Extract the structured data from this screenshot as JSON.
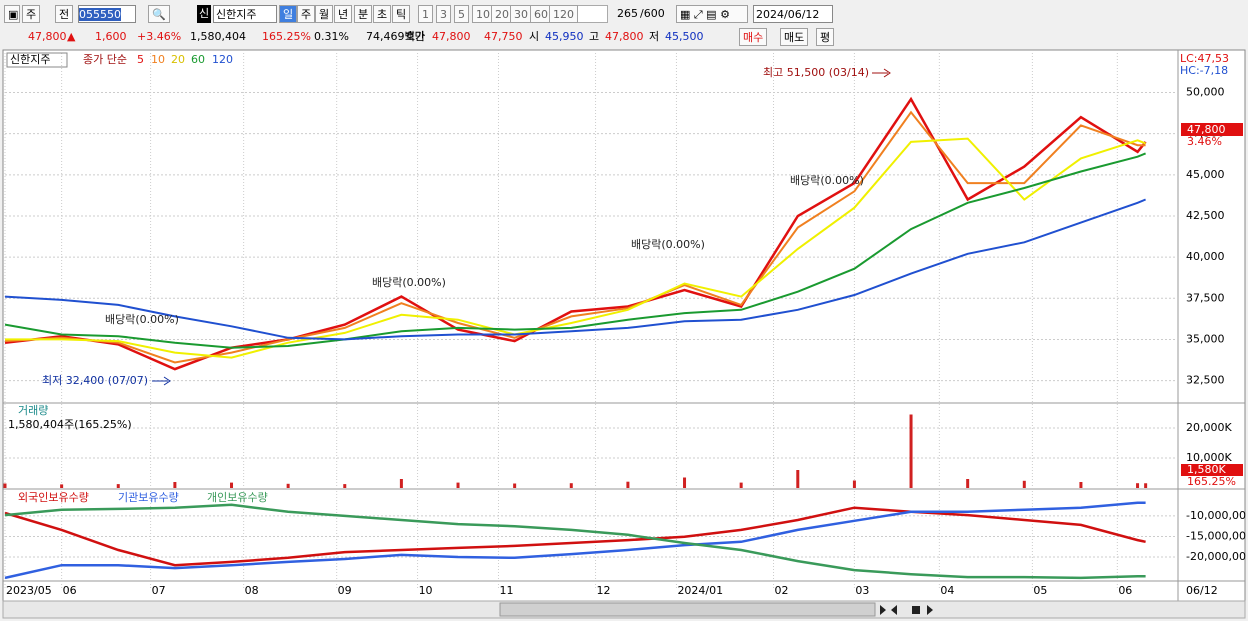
{
  "toolbar": {
    "period": "주",
    "prev": "전",
    "code": "055550",
    "market": "신",
    "name": "신한지주",
    "units": [
      "일",
      "주",
      "월",
      "년",
      "분",
      "초",
      "틱"
    ],
    "intervals": [
      "1",
      "3",
      "5",
      "10",
      "20",
      "30",
      "60",
      "120"
    ],
    "count": "265",
    "max": "/600",
    "date": "2024/06/12"
  },
  "quote": {
    "price": "47,800",
    "arrow": "▲",
    "change": "1,600",
    "rate": "+3.46%",
    "volume": "1,580,404",
    "volume_rate": "165.25%",
    "turnover": "0.31%",
    "amount": "74,469백만",
    "bid_label": "호가",
    "ask": "47,800",
    "bid": "47,750",
    "open_label": "시",
    "open": "45,950",
    "high_label": "고",
    "high": "47,800",
    "low_label": "저",
    "low": "45,500",
    "buy": "매수",
    "sell": "매도",
    "avg": "평"
  },
  "chart_data": [
    {
      "type": "line",
      "name": "신한지주",
      "legend_title": "종가 단순",
      "lc": "LC:47,53",
      "hc": "HC:-7,18",
      "last_label": "47,800",
      "last_rate": "3.46%",
      "annotations": [
        "최고 51,500 (03/14)",
        "최저 32,400 (07/07)",
        "배당락(0.00%)",
        "배당락(0.00%)",
        "배당락(0.00%)",
        "배당락(0.00%)"
      ],
      "x": [
        0,
        14,
        28,
        42,
        56,
        70,
        84,
        98,
        112,
        126,
        140,
        154,
        168,
        182,
        196,
        210,
        224,
        238,
        252,
        266,
        280,
        282
      ],
      "xlim": [
        0,
        290
      ],
      "ylim": [
        31200,
        52400
      ],
      "yticks": [
        {
          "value": 32500,
          "label": "32,500"
        },
        {
          "value": 35000,
          "label": "35,000"
        },
        {
          "value": 37500,
          "label": "37,500"
        },
        {
          "value": 40000,
          "label": "40,000"
        },
        {
          "value": 42500,
          "label": "42,500"
        },
        {
          "value": 45000,
          "label": "45,000"
        },
        {
          "value": 47500,
          "label": "47,500"
        },
        {
          "value": 50000,
          "label": "50,000"
        }
      ],
      "series": [
        {
          "name": "5",
          "color": "#e01010",
          "values": [
            34800,
            35200,
            34700,
            33200,
            34500,
            35000,
            35900,
            37600,
            35600,
            34900,
            36700,
            37000,
            38000,
            37000,
            42500,
            44500,
            49600,
            43500,
            45500,
            48500,
            46400,
            47000
          ]
        },
        {
          "name": "10",
          "color": "#f08020",
          "values": [
            34900,
            35100,
            34800,
            33600,
            34200,
            35000,
            35700,
            37200,
            36000,
            35100,
            36400,
            36900,
            38300,
            37100,
            41800,
            44000,
            48800,
            44500,
            44500,
            48000,
            46800,
            46800
          ]
        },
        {
          "name": "20",
          "color": "#f0f000",
          "values": [
            35000,
            35000,
            34900,
            34200,
            33900,
            34800,
            35400,
            36500,
            36200,
            35300,
            36000,
            36800,
            38400,
            37600,
            40500,
            43000,
            47000,
            47200,
            43500,
            46000,
            47100,
            46900
          ]
        },
        {
          "name": "60",
          "color": "#1a9a30",
          "values": [
            35900,
            35300,
            35200,
            34800,
            34500,
            34600,
            35000,
            35500,
            35700,
            35600,
            35700,
            36200,
            36600,
            36800,
            37900,
            39300,
            41700,
            43300,
            44200,
            45200,
            46100,
            46300
          ]
        },
        {
          "name": "120",
          "color": "#2050d0",
          "values": [
            37600,
            37400,
            37100,
            36400,
            35800,
            35100,
            35000,
            35200,
            35300,
            35300,
            35500,
            35700,
            36100,
            36200,
            36800,
            37700,
            39000,
            40200,
            40900,
            42100,
            43300,
            43500
          ]
        }
      ]
    },
    {
      "type": "bar",
      "title": "거래량",
      "subtitle": "1,580,404주(165.25%)",
      "last_label": "1,580K",
      "last_rate": "165.25%",
      "color": "#d02020",
      "x": [
        0,
        14,
        28,
        42,
        56,
        70,
        84,
        98,
        112,
        126,
        140,
        154,
        168,
        182,
        196,
        210,
        224,
        238,
        252,
        266,
        280,
        282
      ],
      "xlim": [
        0,
        290
      ],
      "ylim": [
        0,
        28000
      ],
      "yticks": [
        {
          "value": 10000,
          "label": "10,000K"
        },
        {
          "value": 20000,
          "label": "20,000K"
        }
      ],
      "values": [
        1500,
        1200,
        1300,
        2000,
        1800,
        1400,
        1300,
        3000,
        1800,
        1500,
        1600,
        2100,
        3500,
        1800,
        6000,
        2500,
        24500,
        3000,
        2400,
        2000,
        1600,
        1580
      ]
    },
    {
      "type": "line",
      "x": [
        0,
        14,
        28,
        42,
        56,
        70,
        84,
        98,
        112,
        126,
        140,
        154,
        168,
        182,
        196,
        210,
        224,
        238,
        252,
        266,
        280,
        282
      ],
      "xlim": [
        0,
        290
      ],
      "ylim": [
        -25600000,
        -3700000
      ],
      "yticks": [
        {
          "value": -10000000,
          "label": "-10,000,00"
        },
        {
          "value": -15000000,
          "label": "-15,000,00"
        },
        {
          "value": -20000000,
          "label": "-20,000,00"
        }
      ],
      "xticks": [
        {
          "value": 0,
          "label": "2023/05"
        },
        {
          "value": 14,
          "label": "06"
        },
        {
          "value": 36,
          "label": "07"
        },
        {
          "value": 59,
          "label": "08"
        },
        {
          "value": 82,
          "label": "09"
        },
        {
          "value": 102,
          "label": "10"
        },
        {
          "value": 122,
          "label": "11"
        },
        {
          "value": 146,
          "label": "12"
        },
        {
          "value": 166,
          "label": "2024/01"
        },
        {
          "value": 190,
          "label": "02"
        },
        {
          "value": 210,
          "label": "03"
        },
        {
          "value": 231,
          "label": "04"
        },
        {
          "value": 254,
          "label": "05"
        },
        {
          "value": 275,
          "label": "06"
        }
      ],
      "end_label": "06/12",
      "series": [
        {
          "name": "외국인보유수량",
          "color": "#d01010",
          "values": [
            -9300000,
            -13400000,
            -18300000,
            -22000000,
            -21200000,
            -20200000,
            -18800000,
            -18300000,
            -17800000,
            -17300000,
            -16600000,
            -15900000,
            -15100000,
            -13400000,
            -11000000,
            -8000000,
            -9000000,
            -9800000,
            -11000000,
            -12200000,
            -15900000,
            -16300000
          ]
        },
        {
          "name": "기관보유수량",
          "color": "#3060e0",
          "values": [
            -25100000,
            -22000000,
            -22000000,
            -22700000,
            -22000000,
            -21200000,
            -20500000,
            -19500000,
            -20000000,
            -20200000,
            -19300000,
            -18300000,
            -17100000,
            -16300000,
            -13400000,
            -11200000,
            -9000000,
            -9000000,
            -8500000,
            -8000000,
            -6800000,
            -6800000
          ]
        },
        {
          "name": "개인보유수량",
          "color": "#3a9a5a",
          "values": [
            -9800000,
            -8500000,
            -8300000,
            -8000000,
            -7300000,
            -9000000,
            -10000000,
            -11000000,
            -12000000,
            -12500000,
            -13400000,
            -14600000,
            -16600000,
            -18300000,
            -21000000,
            -23200000,
            -24200000,
            -24900000,
            -24900000,
            -25100000,
            -24700000,
            -24700000
          ]
        }
      ]
    }
  ]
}
